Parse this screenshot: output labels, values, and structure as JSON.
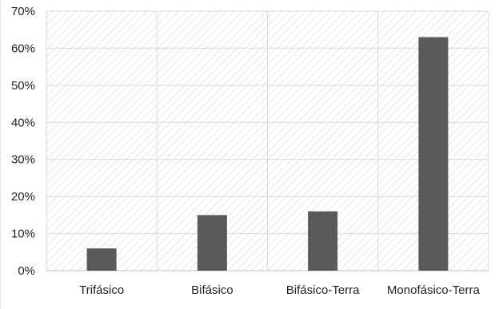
{
  "chart_data": {
    "type": "bar",
    "categories": [
      "Trifásico",
      "Bifásico",
      "Bifásico-Terra",
      "Monofásico-Terra"
    ],
    "values": [
      6,
      15,
      16,
      63
    ],
    "value_unit": "%",
    "ylim": [
      0,
      70
    ],
    "yticks": [
      "0%",
      "10%",
      "20%",
      "30%",
      "40%",
      "50%",
      "60%",
      "70%"
    ],
    "grid": true,
    "legend": "none",
    "colors": {
      "bar": "#595959",
      "grid": "#d9d9d9",
      "hatch": "#dcdcdc",
      "axis": "#bfbfbf"
    }
  }
}
